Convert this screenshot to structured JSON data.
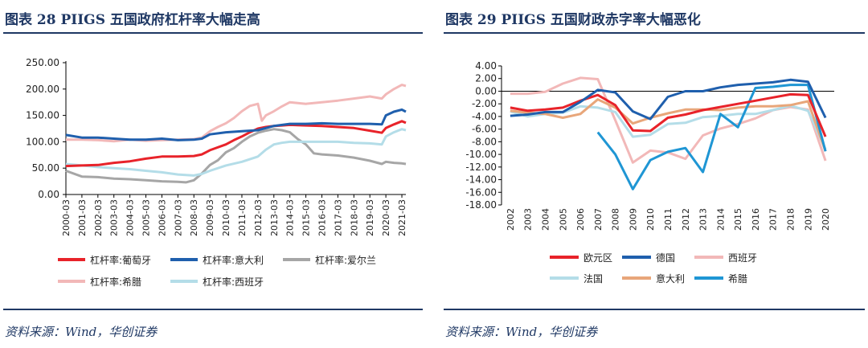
{
  "left": {
    "title": "图表 28   PIIGS 五国政府杠杆率大幅走高",
    "source": "资料来源：Wind，华创证券",
    "chart_data": {
      "type": "line",
      "ylim": [
        0,
        250
      ],
      "yticks": [
        "250.00",
        "200.00",
        "150.00",
        "100.00",
        "50.00",
        "0.00"
      ],
      "xticks": [
        "2000-03",
        "2001-03",
        "2002-03",
        "2003-03",
        "2004-03",
        "2005-03",
        "2006-03",
        "2007-03",
        "2008-03",
        "2009-03",
        "2010-03",
        "2011-03",
        "2012-03",
        "2013-03",
        "2014-03",
        "2015-03",
        "2016-03",
        "2017-03",
        "2018-03",
        "2019-03",
        "2020-03",
        "2021-03"
      ],
      "x_range": [
        2000.0,
        2021.25
      ],
      "series": [
        {
          "name": "杠杆率:葡萄牙",
          "color": "#e8232a",
          "width": 3,
          "x": [
            2000,
            2001,
            2002,
            2003,
            2004,
            2005,
            2006,
            2007,
            2008,
            2008.5,
            2009,
            2010,
            2010.5,
            2011,
            2011.5,
            2012,
            2012.5,
            2013,
            2013.5,
            2014,
            2015,
            2016,
            2017,
            2018,
            2019,
            2019.75,
            2020,
            2020.5,
            2021,
            2021.25
          ],
          "y": [
            54,
            55,
            56,
            60,
            63,
            68,
            72,
            72,
            73,
            76,
            84,
            95,
            103,
            110,
            118,
            125,
            128,
            130,
            131,
            132,
            131,
            130,
            128,
            126,
            121,
            117,
            126,
            133,
            139,
            136
          ]
        },
        {
          "name": "杠杆率:意大利",
          "color": "#1f5fad",
          "width": 3,
          "x": [
            2000,
            2001,
            2002,
            2003,
            2004,
            2005,
            2006,
            2007,
            2008,
            2008.5,
            2009,
            2010,
            2011,
            2012,
            2013,
            2014,
            2015,
            2016,
            2017,
            2018,
            2019,
            2019.75,
            2020,
            2020.5,
            2021,
            2021.25
          ],
          "y": [
            113,
            108,
            108,
            106,
            104,
            104,
            106,
            103,
            104,
            106,
            114,
            118,
            120,
            122,
            130,
            134,
            134,
            135,
            134,
            134,
            134,
            133,
            150,
            157,
            161,
            157
          ]
        },
        {
          "name": "杠杆率:爱尔兰",
          "color": "#a6a6a6",
          "width": 3,
          "x": [
            2000,
            2001,
            2002,
            2003,
            2004,
            2005,
            2006,
            2007,
            2007.5,
            2008,
            2008.5,
            2009,
            2009.5,
            2010,
            2010.5,
            2011,
            2011.5,
            2012,
            2012.5,
            2013,
            2013.5,
            2014,
            2014.5,
            2015,
            2015.5,
            2016,
            2017,
            2018,
            2019,
            2019.75,
            2020,
            2020.5,
            2021,
            2021.25
          ],
          "y": [
            45,
            34,
            33,
            30,
            29,
            27,
            25,
            24,
            23,
            27,
            40,
            56,
            65,
            80,
            88,
            100,
            110,
            117,
            121,
            124,
            122,
            118,
            105,
            95,
            78,
            76,
            74,
            70,
            64,
            58,
            62,
            60,
            59,
            58
          ]
        },
        {
          "name": "杠杆率:希腊",
          "color": "#f2b8b8",
          "width": 3,
          "x": [
            2000,
            2001,
            2002,
            2003,
            2004,
            2005,
            2006,
            2007,
            2008,
            2008.5,
            2009,
            2009.5,
            2010,
            2010.5,
            2011,
            2011.5,
            2012,
            2012.25,
            2012.5,
            2013,
            2013.5,
            2014,
            2015,
            2016,
            2017,
            2018,
            2019,
            2019.75,
            2020,
            2020.5,
            2021,
            2021.25
          ],
          "y": [
            104,
            104,
            103,
            101,
            104,
            102,
            103,
            104,
            105,
            108,
            120,
            128,
            135,
            145,
            158,
            168,
            172,
            140,
            150,
            158,
            167,
            175,
            172,
            175,
            178,
            182,
            186,
            182,
            190,
            200,
            208,
            206
          ]
        },
        {
          "name": "杠杆率:西班牙",
          "color": "#b4dde8",
          "width": 3,
          "x": [
            2000,
            2001,
            2002,
            2003,
            2004,
            2005,
            2006,
            2007,
            2008,
            2008.5,
            2009,
            2010,
            2011,
            2012,
            2012.5,
            2013,
            2013.5,
            2014,
            2015,
            2016,
            2017,
            2018,
            2019,
            2019.75,
            2020,
            2020.5,
            2021,
            2021.25
          ],
          "y": [
            58,
            55,
            52,
            50,
            48,
            45,
            42,
            38,
            36,
            39,
            45,
            55,
            62,
            72,
            85,
            95,
            98,
            100,
            100,
            100,
            100,
            98,
            97,
            95,
            110,
            118,
            124,
            122
          ]
        }
      ]
    }
  },
  "right": {
    "title": "图表 29   PIIGS 五国财政赤字率大幅恶化",
    "source": "资料来源：Wind，华创证券",
    "chart_data": {
      "type": "line",
      "ylim": [
        -18,
        4
      ],
      "yticks": [
        "4.00",
        "2.00",
        "0.00",
        "-2.00",
        "-4.00",
        "-6.00",
        "-8.00",
        "-10.00",
        "-12.00",
        "-14.00",
        "-16.00",
        "-18.00"
      ],
      "xticks": [
        "2002",
        "2003",
        "2004",
        "2005",
        "2006",
        "2007",
        "2008",
        "2009",
        "2010",
        "2011",
        "2012",
        "2013",
        "2014",
        "2015",
        "2016",
        "2017",
        "2018",
        "2019",
        "2020"
      ],
      "series": [
        {
          "name": "欧元区",
          "color": "#e8232a",
          "width": 3,
          "x": [
            2002,
            2003,
            2004,
            2005,
            2006,
            2007,
            2008,
            2009,
            2010,
            2011,
            2012,
            2013,
            2014,
            2015,
            2016,
            2017,
            2018,
            2019,
            2020
          ],
          "y": [
            -2.6,
            -3.1,
            -2.9,
            -2.6,
            -1.5,
            -0.6,
            -2.2,
            -6.2,
            -6.3,
            -4.2,
            -3.7,
            -3.0,
            -2.5,
            -2.0,
            -1.5,
            -1.0,
            -0.5,
            -0.6,
            -7.2
          ]
        },
        {
          "name": "德国",
          "color": "#1f5fad",
          "width": 3,
          "x": [
            2002,
            2003,
            2004,
            2005,
            2006,
            2007,
            2008,
            2009,
            2010,
            2011,
            2012,
            2013,
            2014,
            2015,
            2016,
            2017,
            2018,
            2019,
            2020
          ],
          "y": [
            -3.9,
            -3.7,
            -3.3,
            -3.3,
            -1.7,
            0.2,
            -0.2,
            -3.2,
            -4.4,
            -0.9,
            0.0,
            0.0,
            0.6,
            1.0,
            1.2,
            1.4,
            1.8,
            1.5,
            -4.2
          ]
        },
        {
          "name": "西班牙",
          "color": "#f2b8b8",
          "width": 3,
          "x": [
            2002,
            2003,
            2004,
            2005,
            2006,
            2007,
            2008,
            2009,
            2010,
            2011,
            2012,
            2013,
            2014,
            2015,
            2016,
            2017,
            2018,
            2019,
            2020
          ],
          "y": [
            -0.4,
            -0.4,
            -0.1,
            1.2,
            2.1,
            1.9,
            -4.6,
            -11.3,
            -9.4,
            -9.7,
            -10.7,
            -7.0,
            -5.9,
            -5.2,
            -4.3,
            -3.0,
            -2.5,
            -2.9,
            -11.0
          ]
        },
        {
          "name": "法国",
          "color": "#b4dde8",
          "width": 3,
          "x": [
            2002,
            2003,
            2004,
            2005,
            2006,
            2007,
            2008,
            2009,
            2010,
            2011,
            2012,
            2013,
            2014,
            2015,
            2016,
            2017,
            2018,
            2019,
            2020
          ],
          "y": [
            -3.2,
            -4.0,
            -3.6,
            -3.4,
            -2.4,
            -2.6,
            -3.3,
            -7.2,
            -6.9,
            -5.2,
            -5.0,
            -4.1,
            -3.9,
            -3.6,
            -3.6,
            -3.0,
            -2.3,
            -3.1,
            -9.2
          ]
        },
        {
          "name": "意大利",
          "color": "#e8a67a",
          "width": 3,
          "x": [
            2002,
            2003,
            2004,
            2005,
            2006,
            2007,
            2008,
            2009,
            2010,
            2011,
            2012,
            2013,
            2014,
            2015,
            2016,
            2017,
            2018,
            2019,
            2020
          ],
          "y": [
            -3.1,
            -3.4,
            -3.6,
            -4.2,
            -3.6,
            -1.3,
            -2.6,
            -5.1,
            -4.2,
            -3.5,
            -2.9,
            -2.9,
            -3.0,
            -2.6,
            -2.4,
            -2.4,
            -2.2,
            -1.6,
            -9.5
          ]
        },
        {
          "name": "希腊",
          "color": "#1f96d4",
          "width": 3,
          "x": [
            2007,
            2008,
            2009,
            2010,
            2011,
            2012,
            2013,
            2014,
            2015,
            2016,
            2017,
            2018,
            2019,
            2020
          ],
          "y": [
            -6.5,
            -10.0,
            -15.5,
            -10.9,
            -9.6,
            -9.0,
            -12.8,
            -3.6,
            -5.7,
            0.5,
            0.7,
            1.0,
            1.0,
            -9.5
          ]
        }
      ]
    }
  }
}
